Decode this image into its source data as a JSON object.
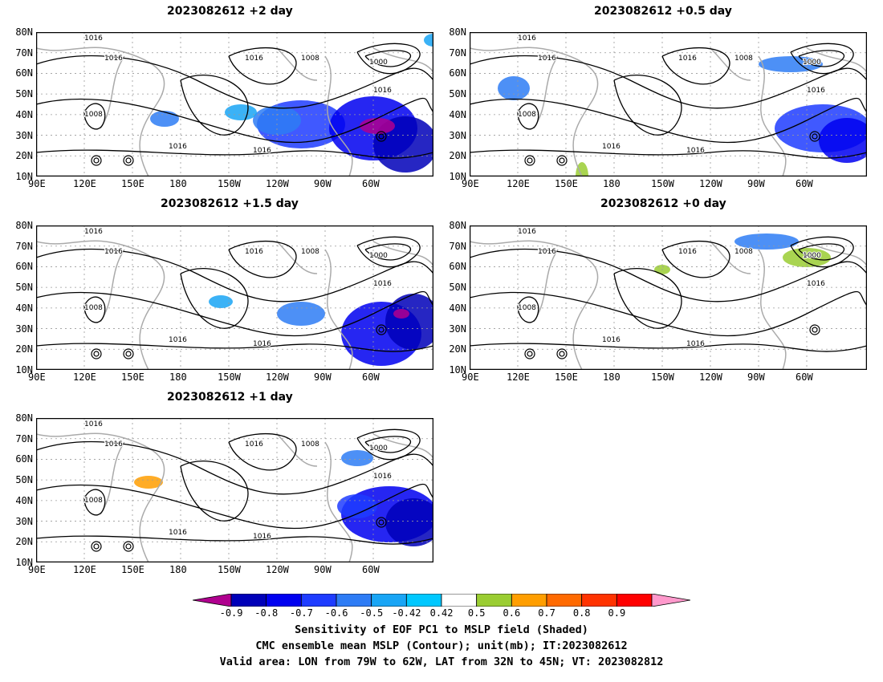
{
  "panels": [
    {
      "title": "2023082612 +2 day"
    },
    {
      "title": "2023082612 +0.5 day"
    },
    {
      "title": "2023082612 +1.5 day"
    },
    {
      "title": "2023082612 +0 day"
    },
    {
      "title": "2023082612 +1 day"
    }
  ],
  "lat_labels": [
    "80N",
    "70N",
    "60N",
    "50N",
    "40N",
    "30N",
    "20N",
    "10N"
  ],
  "lon_labels": [
    "90E",
    "120E",
    "150E",
    "180",
    "150W",
    "120W",
    "90W",
    "60W"
  ],
  "contour_labels": [
    "1016",
    "1008",
    "1000"
  ],
  "colorbar": {
    "ticks": [
      "-0.9",
      "-0.8",
      "-0.7",
      "-0.6",
      "-0.5",
      "-0.42",
      "0.42",
      "0.5",
      "0.6",
      "0.7",
      "0.8",
      "0.9"
    ],
    "colors": [
      "#b0008f",
      "#0000b8",
      "#0000f0",
      "#1e3cff",
      "#2e7cf5",
      "#19a5f5",
      "#00c8ff",
      "#ffffff",
      "#9acd32",
      "#ff9e00",
      "#ff6a00",
      "#ff3300",
      "#ff0000",
      "#ff99cc"
    ]
  },
  "captions": {
    "line1": "Sensitivity of EOF PC1 to MSLP field (Shaded)",
    "line2": "CMC ensemble mean MSLP (Contour); unit(mb); IT:2023082612",
    "line3": "Valid area: LON from 79W to 62W, LAT from 32N to 45N; VT: 2023082812"
  }
}
